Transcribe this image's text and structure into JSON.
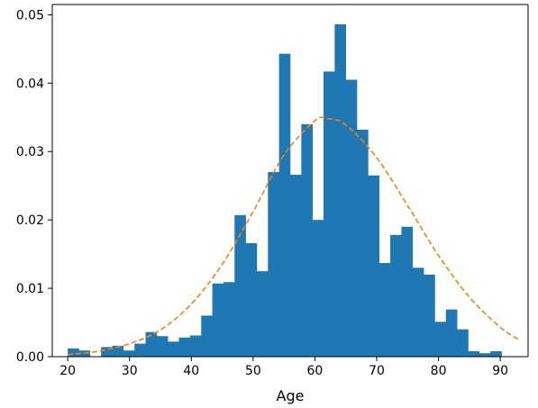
{
  "chart_data": {
    "type": "bar",
    "xlabel": "Age",
    "ylabel": "",
    "title": "",
    "xlim": [
      17.5,
      94.5
    ],
    "ylim": [
      0,
      0.0515
    ],
    "x_ticks": [
      20,
      30,
      40,
      50,
      60,
      70,
      80,
      90
    ],
    "y_ticks": [
      0.0,
      0.01,
      0.02,
      0.03,
      0.04,
      0.05
    ],
    "y_tick_labels": [
      "0.00",
      "0.01",
      "0.02",
      "0.03",
      "0.04",
      "0.05"
    ],
    "histogram": {
      "bin_start": 20.0,
      "bin_width": 1.8,
      "color": "#1f77b4",
      "values": [
        0.0012,
        0.0009,
        0.0,
        0.0014,
        0.0016,
        0.0009,
        0.0019,
        0.0036,
        0.003,
        0.0022,
        0.0028,
        0.0031,
        0.006,
        0.0107,
        0.0109,
        0.0207,
        0.0166,
        0.0125,
        0.027,
        0.0443,
        0.0266,
        0.034,
        0.02,
        0.0417,
        0.0486,
        0.0405,
        0.0332,
        0.0265,
        0.0137,
        0.0178,
        0.019,
        0.013,
        0.012,
        0.0051,
        0.0069,
        0.004,
        0.0008,
        0.0005,
        0.0008
      ]
    },
    "series": [
      {
        "type": "line",
        "style": "dashed",
        "color": "#ff7f0e",
        "x": [
          20,
          25,
          30,
          35,
          40,
          45,
          50,
          55,
          60,
          62,
          65,
          70,
          75,
          80,
          85,
          90,
          93
        ],
        "y": [
          0.0003,
          0.0008,
          0.0019,
          0.0039,
          0.0077,
          0.0135,
          0.0212,
          0.0295,
          0.0345,
          0.0348,
          0.0339,
          0.0291,
          0.0221,
          0.0148,
          0.0087,
          0.0043,
          0.0025
        ]
      }
    ]
  }
}
